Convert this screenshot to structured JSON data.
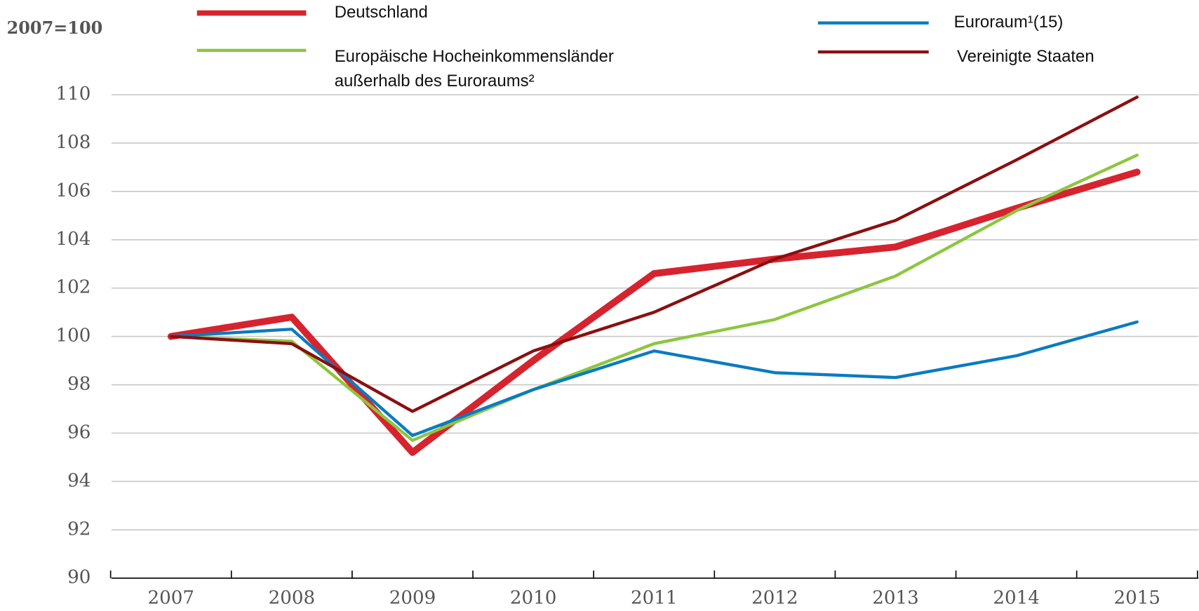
{
  "chart_data": {
    "type": "line",
    "title": "2007=100",
    "categories": [
      "2007",
      "2008",
      "2009",
      "2010",
      "2011",
      "2012",
      "2013",
      "2014",
      "2015"
    ],
    "series": [
      {
        "name": "Deutschland",
        "color": "#d7232e",
        "width": 9,
        "values": [
          100,
          100.8,
          95.2,
          99.0,
          102.6,
          103.2,
          103.7,
          105.3,
          106.8
        ]
      },
      {
        "name": "Europäische Hocheinkommensländer außerhalb des Euroraums²",
        "color": "#8cc63f",
        "width": 4,
        "values": [
          100,
          99.8,
          95.7,
          97.8,
          99.7,
          100.7,
          102.5,
          105.2,
          107.5
        ]
      },
      {
        "name": "Euroraum¹(15)",
        "color": "#0a7bc1",
        "width": 4,
        "values": [
          100,
          100.3,
          95.9,
          97.8,
          99.4,
          98.5,
          98.3,
          99.2,
          100.6
        ]
      },
      {
        "name": "Vereinigte Staaten",
        "color": "#8b0f10",
        "width": 4,
        "values": [
          100,
          99.7,
          96.9,
          99.4,
          101.0,
          103.2,
          104.8,
          107.3,
          109.9
        ]
      }
    ],
    "ylim": [
      90,
      110
    ],
    "yticks": [
      90,
      92,
      94,
      96,
      98,
      100,
      102,
      104,
      106,
      108,
      110
    ],
    "grid": true
  }
}
